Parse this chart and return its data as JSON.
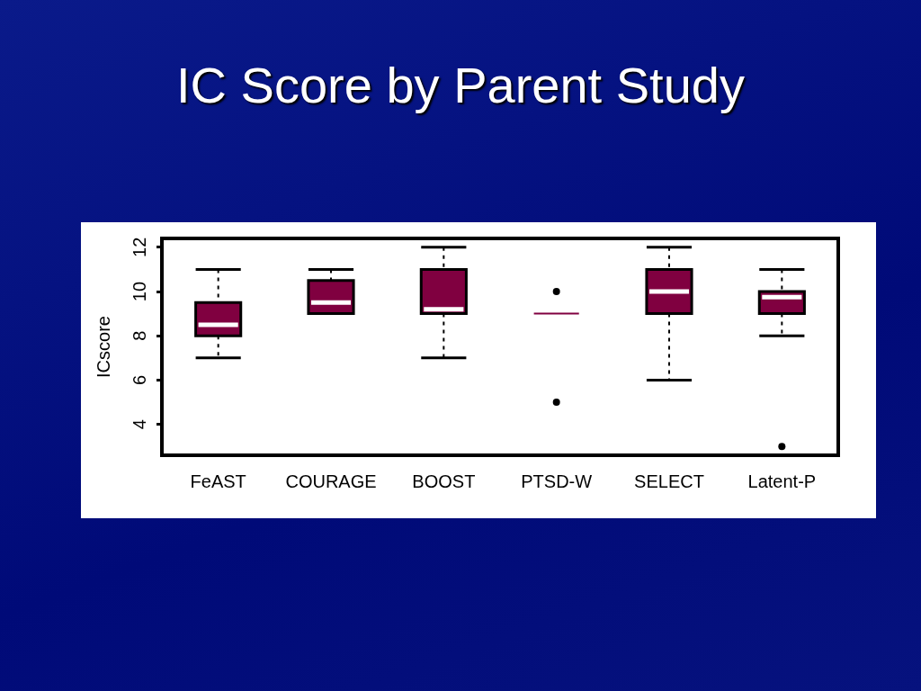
{
  "chart_data": {
    "type": "box",
    "title": "IC Score by Parent Study",
    "ylabel": "ICscore",
    "categories": [
      "FeAST",
      "COURAGE",
      "BOOST",
      "PTSD-W",
      "SELECT",
      "Latent-P"
    ],
    "series": [
      {
        "color": "#800040",
        "boxes": [
          {
            "low": 7,
            "q1": 8,
            "median": 8.5,
            "q3": 9.5,
            "high": 11
          },
          {
            "low": 9,
            "q1": 9,
            "median": 9.5,
            "q3": 10.5,
            "high": 11
          },
          {
            "low": 7,
            "q1": 9,
            "median": 9.2,
            "q3": 11,
            "high": 12
          },
          {
            "low": 9,
            "q1": 9,
            "median": 9,
            "q3": 9,
            "high": 9,
            "outliers": [
              10,
              5
            ]
          },
          {
            "low": 6,
            "q1": 9,
            "median": 10,
            "q3": 11,
            "high": 12
          },
          {
            "low": 8,
            "q1": 9,
            "median": 9.75,
            "q3": 10,
            "high": 11,
            "outliers": [
              3
            ]
          }
        ]
      }
    ],
    "ylim": [
      2.6,
      12.4
    ],
    "yticks": [
      4,
      6,
      8,
      10,
      12
    ],
    "grid": false,
    "legend": false
  }
}
